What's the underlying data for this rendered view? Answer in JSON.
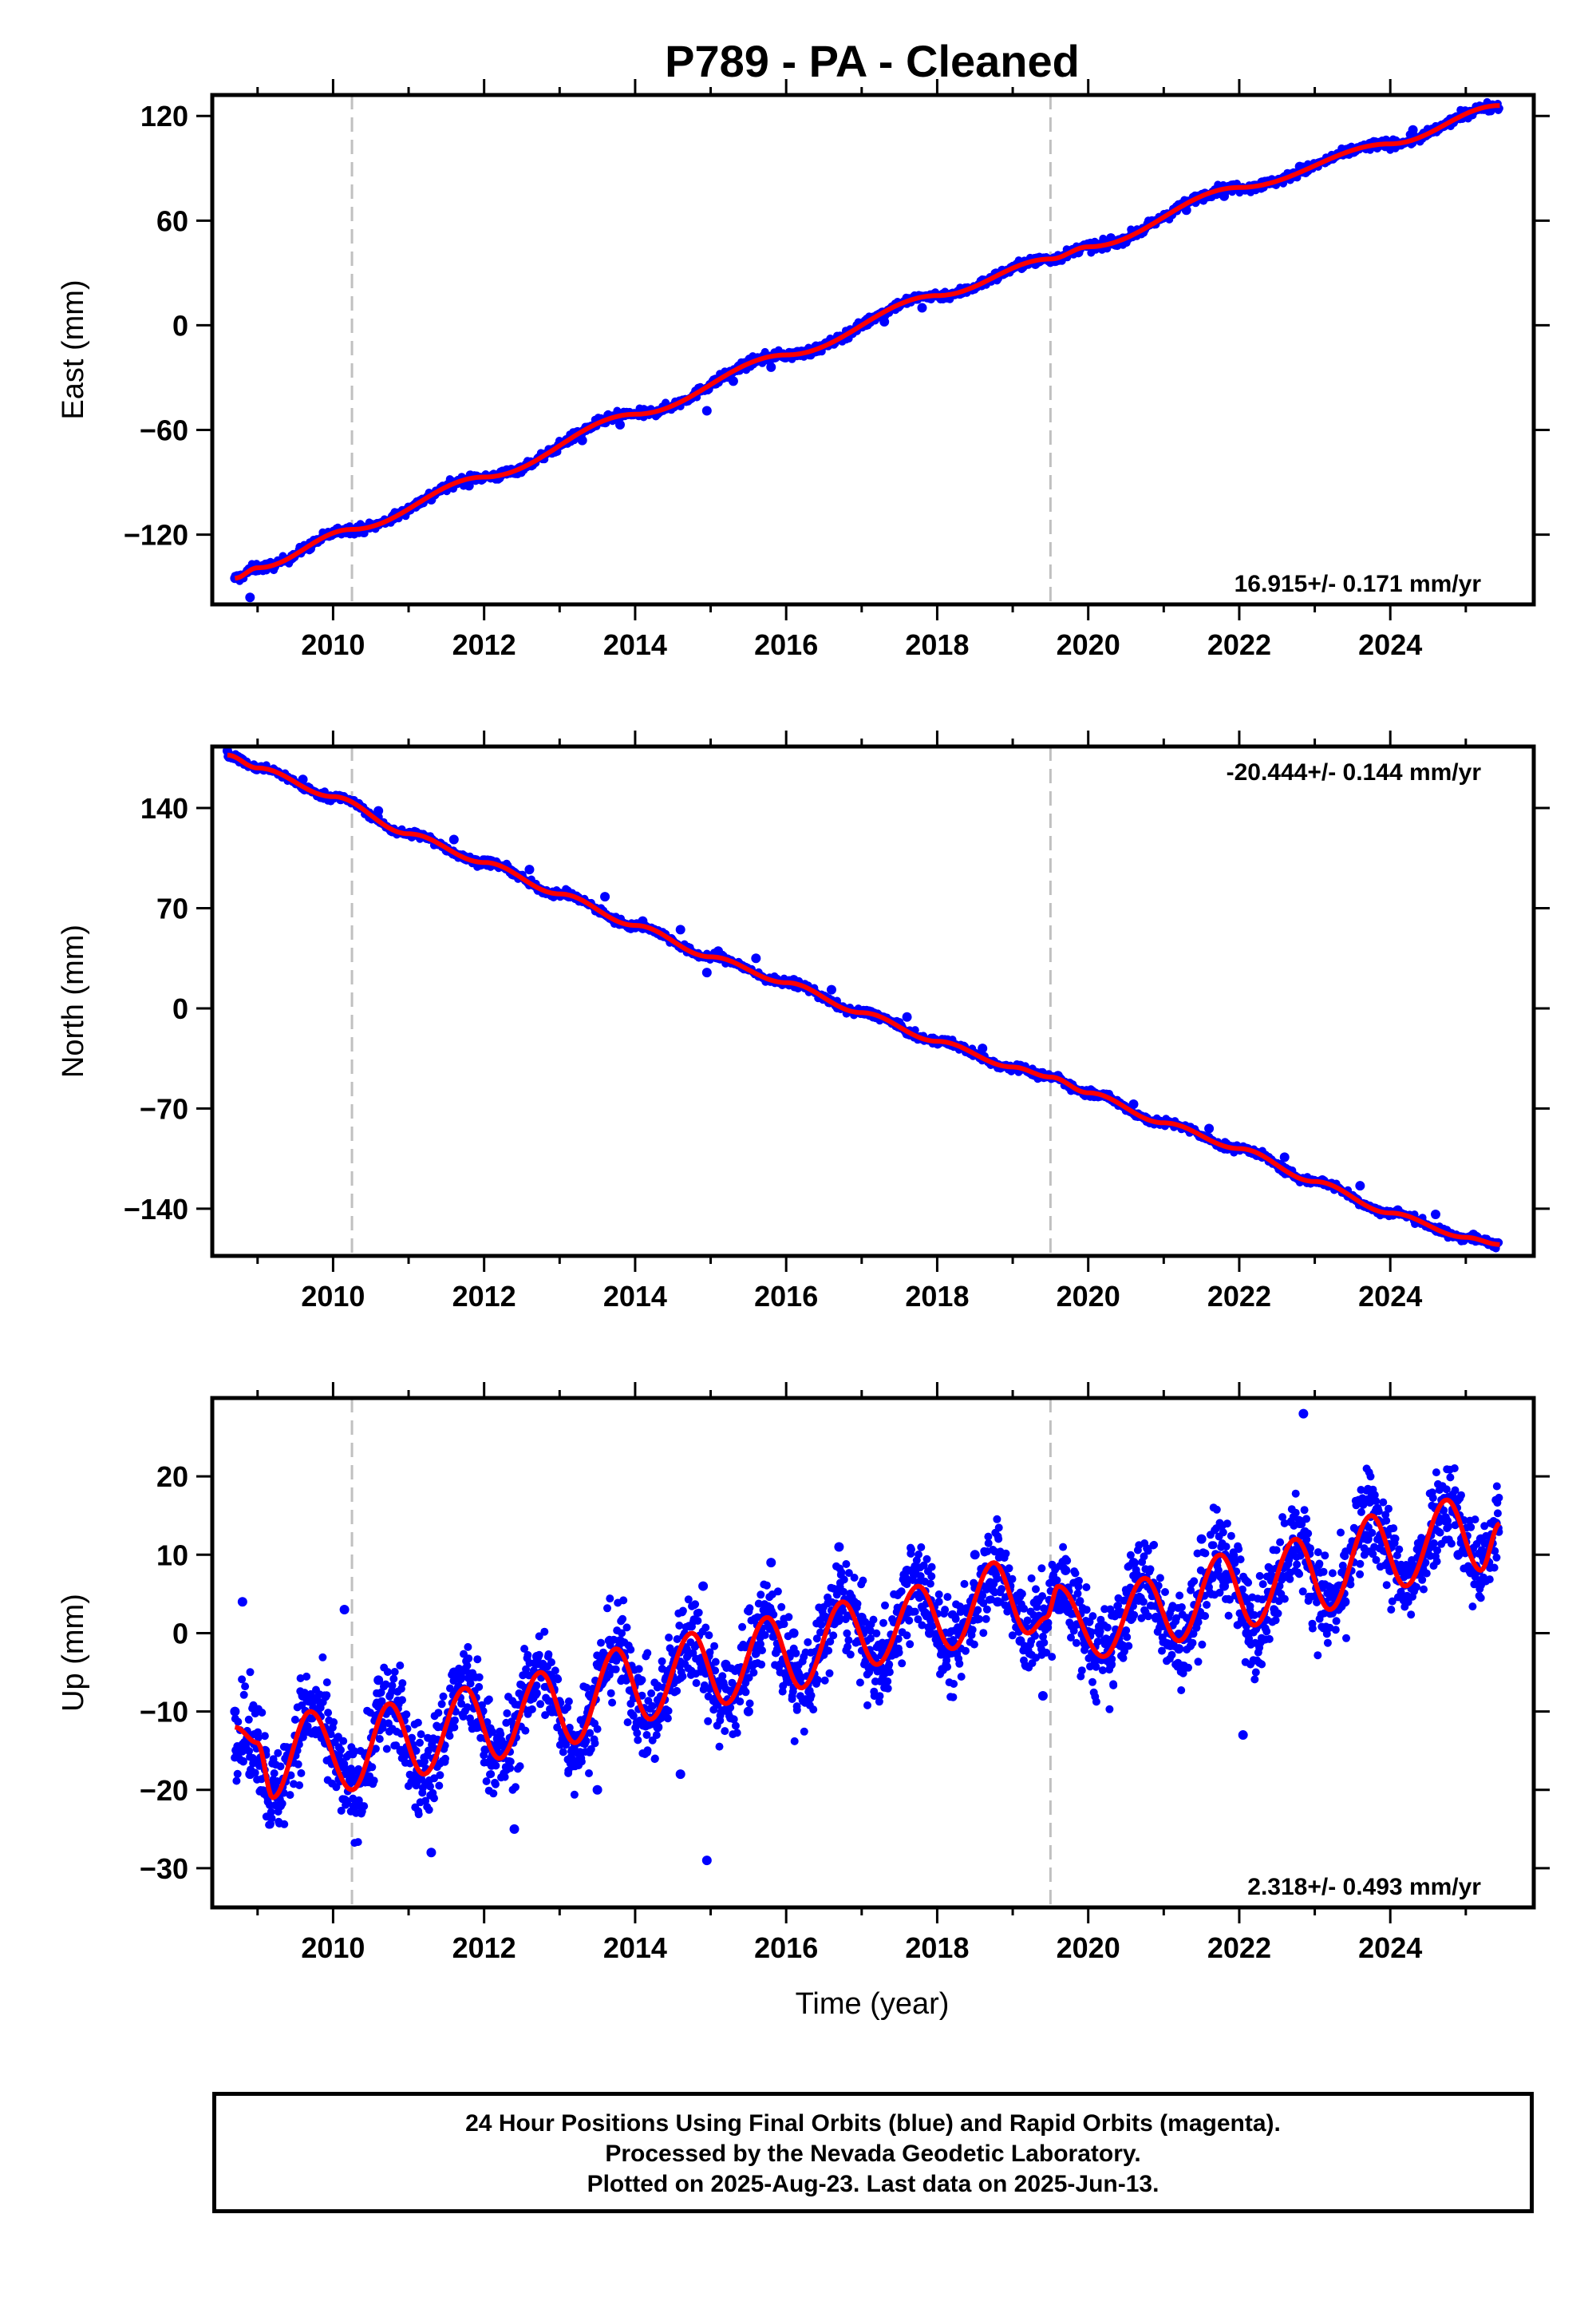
{
  "title": "P789  - PA - Cleaned",
  "xlabel": "Time (year)",
  "footer": {
    "line1": "24 Hour Positions Using Final Orbits (blue) and Rapid Orbits (magenta).",
    "line2": "Processed by the Nevada Geodetic Laboratory.",
    "line3": "Plotted on 2025-Aug-23. Last data on 2025-Jun-13."
  },
  "colors": {
    "data_points": "#0000ff",
    "model": "#ff0000",
    "breaks": "#c0c0c0"
  },
  "chart_data": [
    {
      "type": "scatter",
      "name": "east",
      "ylabel": "East (mm)",
      "rate": "16.915+/- 0.171 mm/yr",
      "rate_position": "bottom-right",
      "xlim": [
        2008.4,
        2025.9
      ],
      "ylim": [
        -160,
        132
      ],
      "xticks": [
        2010,
        2012,
        2014,
        2016,
        2018,
        2020,
        2022,
        2024
      ],
      "yticks": [
        -120,
        -60,
        0,
        60,
        120
      ],
      "breaks": [
        2010.25,
        2019.5
      ],
      "model_line": {
        "x": [
          2008.7,
          2009.0,
          2010.25,
          2012.0,
          2014.0,
          2016.0,
          2018.0,
          2019.5,
          2020.0,
          2022.0,
          2024.0,
          2025.45
        ],
        "y": [
          -145,
          -139,
          -117,
          -87,
          -51,
          -17,
          17,
          38,
          45,
          79,
          104,
          126
        ]
      },
      "points": {
        "x": [
          2008.7,
          2009.2,
          2009.7,
          2010.25,
          2010.8,
          2011.3,
          2011.8,
          2012.3,
          2012.8,
          2013.3,
          2013.8,
          2014.3,
          2014.8,
          2015.3,
          2015.8,
          2016.3,
          2016.8,
          2017.3,
          2017.8,
          2018.3,
          2018.8,
          2019.3,
          2019.8,
          2020.3,
          2020.8,
          2021.3,
          2021.8,
          2022.3,
          2022.8,
          2023.3,
          2023.8,
          2024.3,
          2024.8,
          2025.3,
          2008.9,
          2014.95
        ],
        "y": [
          -145,
          -137,
          -128,
          -118,
          -109,
          -100,
          -92,
          -83,
          -74,
          -66,
          -57,
          -49,
          -40,
          -32,
          -24,
          -16,
          -7,
          2,
          10,
          18,
          27,
          35,
          42,
          50,
          58,
          66,
          74,
          82,
          91,
          98,
          105,
          112,
          118,
          124,
          -156,
          -49
        ]
      }
    },
    {
      "type": "scatter",
      "name": "north",
      "ylabel": "North (mm)",
      "rate": "-20.444+/- 0.144 mm/yr",
      "rate_position": "top-right",
      "xlim": [
        2008.4,
        2025.9
      ],
      "ylim": [
        -173,
        183
      ],
      "xticks": [
        2010,
        2012,
        2014,
        2016,
        2018,
        2020,
        2022,
        2024
      ],
      "yticks": [
        -140,
        -70,
        0,
        70,
        140
      ],
      "breaks": [
        2010.25,
        2019.5
      ],
      "model_line": {
        "x": [
          2008.6,
          2009.0,
          2010.0,
          2011.0,
          2012.0,
          2013.0,
          2014.0,
          2015.0,
          2016.0,
          2017.0,
          2018.0,
          2019.0,
          2019.5,
          2020.0,
          2021.0,
          2022.0,
          2023.0,
          2024.0,
          2025.0,
          2025.45
        ],
        "y": [
          177,
          168,
          148,
          122,
          102,
          80,
          58,
          36,
          18,
          -3,
          -23,
          -41,
          -48,
          -59,
          -80,
          -98,
          -121,
          -143,
          -160,
          -165
        ]
      },
      "points": {
        "x": [
          2008.6,
          2009.1,
          2009.6,
          2010.1,
          2010.6,
          2011.1,
          2011.6,
          2012.1,
          2012.6,
          2013.1,
          2013.6,
          2014.1,
          2014.6,
          2015.1,
          2015.6,
          2016.1,
          2016.6,
          2017.1,
          2017.6,
          2018.1,
          2018.6,
          2019.1,
          2019.6,
          2020.1,
          2020.6,
          2021.1,
          2021.6,
          2022.1,
          2022.6,
          2023.1,
          2023.6,
          2024.1,
          2024.6,
          2025.1,
          2025.4,
          2014.95
        ],
        "y": [
          180,
          168,
          160,
          146,
          138,
          123,
          118,
          103,
          97,
          82,
          78,
          61,
          55,
          40,
          35,
          20,
          13,
          -2,
          -6,
          -22,
          -28,
          -40,
          -47,
          -60,
          -67,
          -80,
          -84,
          -98,
          -104,
          -120,
          -124,
          -141,
          -144,
          -158,
          -164,
          25
        ]
      }
    },
    {
      "type": "scatter",
      "name": "up",
      "ylabel": "Up (mm)",
      "rate": "2.318+/- 0.493 mm/yr",
      "rate_position": "bottom-right",
      "xlim": [
        2008.4,
        2025.9
      ],
      "ylim": [
        -35,
        30
      ],
      "xticks": [
        2010,
        2012,
        2014,
        2016,
        2018,
        2020,
        2022,
        2024
      ],
      "yticks": [
        -30,
        -20,
        -10,
        0,
        10,
        20
      ],
      "breaks": [
        2010.25,
        2019.5
      ],
      "model_line": {
        "x": [
          2008.7,
          2009.0,
          2009.2,
          2009.7,
          2010.25,
          2010.75,
          2011.2,
          2011.75,
          2012.2,
          2012.75,
          2013.2,
          2013.75,
          2014.2,
          2014.75,
          2015.2,
          2015.75,
          2016.2,
          2016.75,
          2017.2,
          2017.75,
          2018.2,
          2018.75,
          2019.2,
          2019.45,
          2019.6,
          2020.2,
          2020.75,
          2021.2,
          2021.75,
          2022.2,
          2022.75,
          2023.2,
          2023.75,
          2024.2,
          2024.75,
          2025.2,
          2025.45
        ],
        "y": [
          -12,
          -14,
          -21,
          -10,
          -20,
          -9,
          -18,
          -7,
          -16,
          -5,
          -14,
          -2,
          -11,
          0,
          -9,
          2,
          -7,
          4,
          -4,
          6,
          -2,
          9,
          0,
          2,
          6,
          -3,
          7,
          -1,
          10,
          1,
          12,
          3,
          15,
          6,
          17,
          8,
          14
        ]
      },
      "points": {
        "x": [
          2008.7,
          2008.9,
          2009.1,
          2009.3,
          2009.6,
          2009.9,
          2010.1,
          2010.3,
          2010.6,
          2010.9,
          2011.1,
          2011.3,
          2011.6,
          2011.9,
          2012.1,
          2012.4,
          2012.7,
          2012.9,
          2013.2,
          2013.5,
          2013.8,
          2014.0,
          2014.3,
          2014.6,
          2014.9,
          2015.2,
          2015.5,
          2015.8,
          2016.1,
          2016.4,
          2016.7,
          2017.0,
          2017.3,
          2017.6,
          2017.9,
          2018.2,
          2018.5,
          2018.8,
          2019.1,
          2019.4,
          2019.7,
          2020.0,
          2020.3,
          2020.6,
          2020.9,
          2021.2,
          2021.5,
          2021.8,
          2022.1,
          2022.4,
          2022.8,
          2023.1,
          2023.4,
          2023.7,
          2024.0,
          2024.3,
          2024.6,
          2024.9,
          2025.2,
          2025.4,
          2008.8,
          2010.15,
          2014.95,
          2022.05,
          2022.85
        ],
        "y": [
          -10,
          -18,
          -15,
          -22,
          -8,
          -14,
          -17,
          -22,
          -6,
          -15,
          -19,
          -28,
          -5,
          -12,
          -16,
          -25,
          -3,
          -10,
          -14,
          -20,
          -1,
          -8,
          -12,
          -18,
          6,
          -4,
          -10,
          9,
          0,
          -6,
          11,
          2,
          -5,
          8,
          0,
          -2,
          10,
          4,
          -1,
          -8,
          8,
          0,
          -4,
          9,
          2,
          -2,
          12,
          6,
          0,
          5,
          14,
          6,
          4,
          12,
          8,
          6,
          16,
          10,
          12,
          14,
          4,
          3,
          -29,
          -13,
          28
        ]
      }
    }
  ]
}
